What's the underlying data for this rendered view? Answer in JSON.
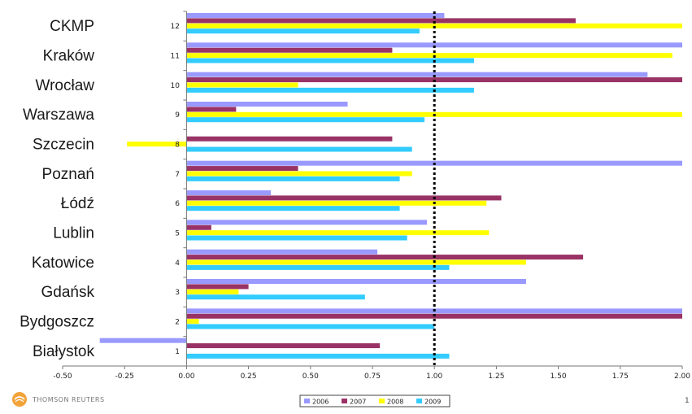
{
  "chart_data": {
    "type": "bar",
    "orientation": "horizontal",
    "categories": [
      "CKMP",
      "Kraków",
      "Wrocław",
      "Warszawa",
      "Szczecin",
      "Poznań",
      "Łódź",
      "Lublin",
      "Katowice",
      "Gdańsk",
      "Bydgoszcz",
      "Białystok"
    ],
    "category_numbers": [
      "12",
      "11",
      "10",
      "9",
      "8",
      "7",
      "6",
      "5",
      "4",
      "3",
      "2",
      "1"
    ],
    "series": [
      {
        "name": "2006",
        "color": "#9999ff",
        "values": [
          1.04,
          2.0,
          1.86,
          0.65,
          null,
          2.0,
          0.34,
          0.97,
          0.77,
          1.37,
          2.0,
          -0.35
        ]
      },
      {
        "name": "2007",
        "color": "#993366",
        "values": [
          1.57,
          0.83,
          2.0,
          0.2,
          0.83,
          0.45,
          1.27,
          0.1,
          1.6,
          0.25,
          2.0,
          0.78
        ]
      },
      {
        "name": "2008",
        "color": "#ffff00",
        "values": [
          2.0,
          1.96,
          0.45,
          2.0,
          -0.24,
          0.91,
          1.21,
          1.22,
          1.37,
          0.21,
          0.05,
          null
        ]
      },
      {
        "name": "2009",
        "color": "#33ccff",
        "values": [
          0.94,
          1.16,
          1.16,
          0.96,
          0.91,
          0.86,
          0.86,
          0.89,
          1.06,
          0.72,
          1.0,
          1.06
        ]
      }
    ],
    "xlim": [
      -0.5,
      2.0
    ],
    "xticks": [
      "-0.50",
      "-0.25",
      "0.00",
      "0.25",
      "0.50",
      "0.75",
      "1.00",
      "1.25",
      "1.50",
      "1.75",
      "2.00"
    ],
    "reference_line": 1.0,
    "legend": [
      "2006",
      "2007",
      "2008",
      "2009"
    ],
    "legend_position": "bottom"
  },
  "footer": {
    "brand": "THOMSON REUTERS",
    "page_number": "1"
  }
}
